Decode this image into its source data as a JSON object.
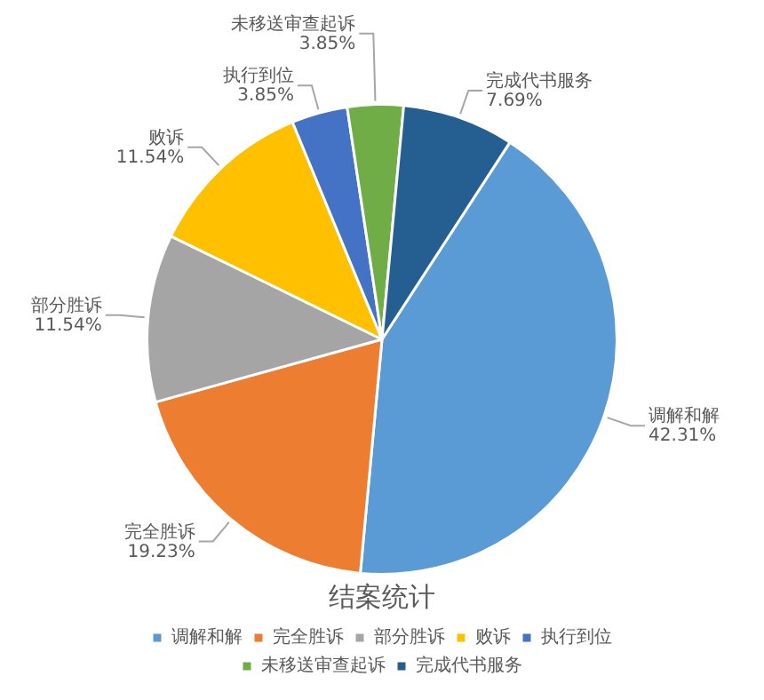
{
  "chart_data": {
    "type": "pie",
    "title": "结案统计",
    "categories": [
      "调解和解",
      "完全胜诉",
      "部分胜诉",
      "败诉",
      "执行到位",
      "未移送审查起诉",
      "完成代书服务"
    ],
    "values": [
      42.31,
      19.23,
      11.54,
      11.54,
      3.85,
      3.85,
      7.69
    ],
    "colors": [
      "#5b9bd5",
      "#ed7d31",
      "#a5a5a5",
      "#ffc000",
      "#4472c4",
      "#70ad47",
      "#255e91"
    ],
    "value_labels": [
      "42.31%",
      "19.23%",
      "11.54%",
      "11.54%",
      "3.85%",
      "3.85%",
      "7.69%"
    ],
    "legend": "bottom"
  }
}
